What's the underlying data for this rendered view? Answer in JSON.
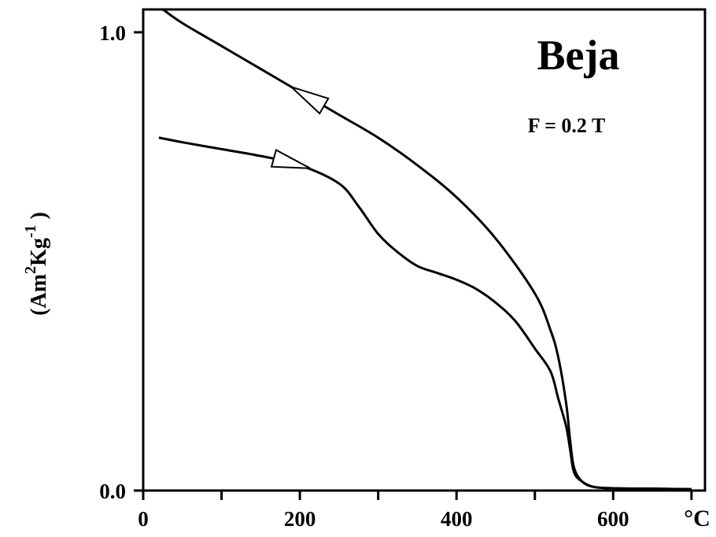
{
  "chart_data": {
    "type": "line",
    "title": "Beja",
    "subtitle": "F = 0.2 T",
    "xlabel": "°C",
    "ylabel": {
      "prefix": "(Am",
      "sup1": "2",
      "mid": "Kg",
      "sup2": "-1",
      "suffix": " )"
    },
    "xlim": [
      0,
      700
    ],
    "ylim": [
      0,
      1.0
    ],
    "x_ticks": [
      0,
      100,
      200,
      300,
      400,
      500,
      600,
      700
    ],
    "x_tick_labels": [
      {
        "value": 0,
        "label": "0"
      },
      {
        "value": 200,
        "label": "200"
      },
      {
        "value": 400,
        "label": "400"
      },
      {
        "value": 600,
        "label": "600"
      }
    ],
    "y_tick_labels": [
      {
        "value": 0.0,
        "label": "0.0"
      },
      {
        "value": 1.0,
        "label": "1.0"
      }
    ],
    "series": [
      {
        "role": "cooling",
        "arrow_at": 210,
        "x": [
          25,
          50,
          100,
          150,
          200,
          250,
          300,
          350,
          400,
          450,
          500,
          520,
          530,
          540,
          545,
          550,
          560,
          575,
          600,
          650,
          700
        ],
        "y": [
          1.05,
          1.02,
          0.97,
          0.92,
          0.87,
          0.82,
          0.77,
          0.71,
          0.64,
          0.55,
          0.43,
          0.35,
          0.29,
          0.19,
          0.11,
          0.05,
          0.02,
          0.008,
          0.005,
          0.004,
          0.003
        ]
      },
      {
        "role": "heating",
        "arrow_at": 190,
        "x": [
          20,
          50,
          100,
          150,
          200,
          250,
          275,
          300,
          325,
          350,
          375,
          400,
          425,
          450,
          475,
          500,
          520,
          530,
          540,
          545,
          550,
          560,
          575,
          600,
          650,
          700
        ],
        "y": [
          0.77,
          0.76,
          0.745,
          0.73,
          0.71,
          0.67,
          0.62,
          0.56,
          0.52,
          0.49,
          0.475,
          0.46,
          0.44,
          0.41,
          0.37,
          0.31,
          0.26,
          0.2,
          0.14,
          0.09,
          0.04,
          0.02,
          0.008,
          0.005,
          0.004,
          0.003
        ]
      }
    ],
    "grid": false,
    "legend": "none"
  }
}
